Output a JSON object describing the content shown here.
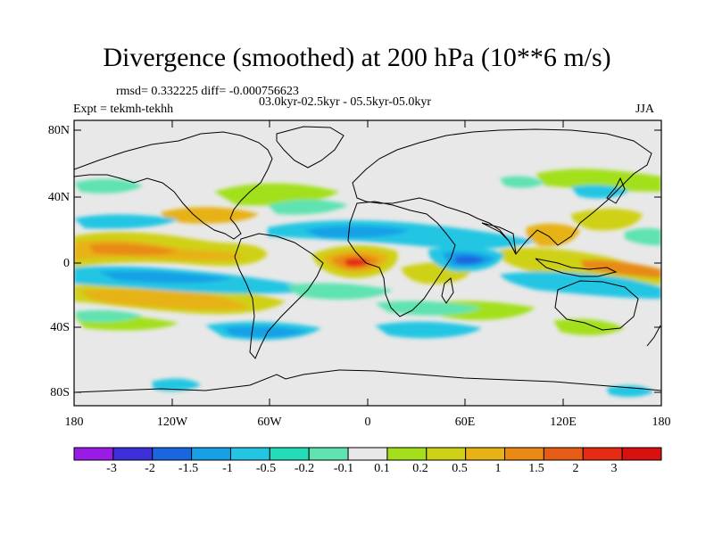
{
  "title": "Divergence (smoothed) at 200 hPa (10**6 m/s)",
  "stats": "rmsd= 0.332225 diff= -0.000756623",
  "period": "03.0kyr-02.5kyr - 05.5kyr-05.0kyr",
  "experiment": "Expt = tekmh-tekhh",
  "season": "JJA",
  "lat_labels": [
    "80N",
    "40N",
    "0",
    "40S",
    "80S"
  ],
  "lon_labels": [
    "180",
    "120W",
    "60W",
    "0",
    "60E",
    "120E",
    "180"
  ],
  "colorbar": {
    "labels": [
      "-3",
      "-2",
      "-1.5",
      "-1",
      "-0.5",
      "-0.2",
      "-0.1",
      "0.1",
      "0.2",
      "0.5",
      "1",
      "1.5",
      "2",
      "3"
    ],
    "colors": [
      "#9a1be6",
      "#3a2fd8",
      "#1a66e0",
      "#16a0e6",
      "#22c6e3",
      "#22ddb7",
      "#5fe3b0",
      "#e8e8e8",
      "#a3e01b",
      "#cfd117",
      "#e7b214",
      "#e88a14",
      "#e65c14",
      "#e52b14",
      "#d81010"
    ]
  },
  "map_colors": {
    "background": "#e8e8e8",
    "weak_neg": "#5fe3b0",
    "neg": "#22c6e3",
    "mod_neg": "#16a0e6",
    "strong_neg": "#1a66e0",
    "weak_pos": "#a3e01b",
    "pos": "#cfd117",
    "mod_pos": "#e7b214",
    "strong_pos": "#e88a14",
    "max_pos": "#e52b14"
  }
}
